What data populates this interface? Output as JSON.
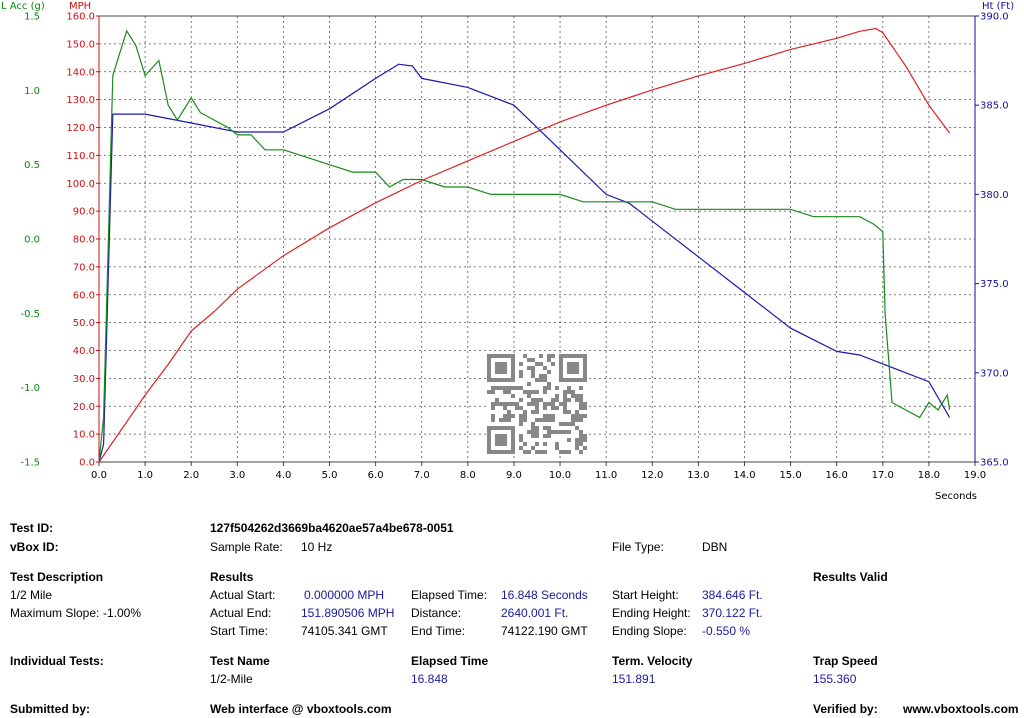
{
  "chart_data": {
    "type": "line",
    "x_axis": {
      "label": "Seconds",
      "min": 0,
      "max": 19,
      "ticks": [
        "0.0",
        "1.0",
        "2.0",
        "3.0",
        "4.0",
        "5.0",
        "6.0",
        "7.0",
        "8.0",
        "9.0",
        "10.0",
        "11.0",
        "12.0",
        "13.0",
        "14.0",
        "15.0",
        "16.0",
        "17.0",
        "18.0",
        "19.0"
      ]
    },
    "y_axes": {
      "acc": {
        "label": "L Acc (g)",
        "min": -1.5,
        "max": 1.5,
        "ticks": [
          "1.5",
          "1.0",
          "0.5",
          "0.0",
          "-0.5",
          "-1.0",
          "-1.5"
        ],
        "color": "#0a8a0a"
      },
      "mph": {
        "label": "MPH",
        "min": 0,
        "max": 160,
        "ticks": [
          "160.0",
          "150.0",
          "140.0",
          "130.0",
          "120.0",
          "110.0",
          "100.0",
          "90.0",
          "80.0",
          "70.0",
          "60.0",
          "50.0",
          "40.0",
          "30.0",
          "20.0",
          "10.0",
          "0.0"
        ],
        "color": "#cc1111"
      },
      "ht": {
        "label": "Ht (Ft)",
        "min": 365,
        "max": 390,
        "ticks": [
          "390.0",
          "385.0",
          "380.0",
          "375.0",
          "370.0",
          "365.0"
        ],
        "color": "#111199"
      }
    },
    "grid": true,
    "series": [
      {
        "axis": "mph",
        "color": "#dd2222",
        "x": [
          0,
          0.5,
          1,
          1.5,
          2,
          2.5,
          3,
          4,
          5,
          6,
          7,
          8,
          9,
          10,
          11,
          12,
          13,
          14,
          15,
          16,
          16.5,
          16.85,
          17,
          17.5,
          18,
          18.45
        ],
        "y": [
          0,
          12,
          24,
          35,
          47,
          54,
          62,
          74,
          84,
          93,
          101,
          108,
          115,
          122,
          128,
          133.5,
          138.5,
          143,
          148,
          152,
          154.5,
          155.5,
          154,
          142,
          128,
          118
        ]
      },
      {
        "axis": "ht",
        "color": "#1a1aaa",
        "x": [
          0,
          0.1,
          0.3,
          1,
          2,
          3,
          4,
          5,
          6,
          6.5,
          6.8,
          7,
          8,
          9,
          10,
          11,
          11.5,
          12,
          13,
          14,
          15,
          16,
          16.5,
          17,
          17.5,
          18,
          18.45
        ],
        "y": [
          365,
          366,
          384.5,
          384.5,
          384,
          383.5,
          383.5,
          384.8,
          386.5,
          387.3,
          387.2,
          386.5,
          386,
          385,
          382.5,
          380,
          379.5,
          378.5,
          376.5,
          374.5,
          372.5,
          371.2,
          371,
          370.5,
          370,
          369.5,
          367.5
        ]
      },
      {
        "axis": "acc",
        "color": "#1a8a1a",
        "x": [
          0,
          0.1,
          0.3,
          0.6,
          0.8,
          1,
          1.3,
          1.5,
          1.7,
          2,
          2.2,
          2.5,
          2.8,
          3,
          3.3,
          3.6,
          4,
          4.5,
          5,
          5.5,
          6,
          6.3,
          6.6,
          7,
          7.5,
          8,
          8.5,
          9,
          9.5,
          10,
          10.5,
          11,
          11.5,
          12,
          12.5,
          13,
          13.5,
          14,
          14.5,
          15,
          15.5,
          16,
          16.5,
          16.8,
          17,
          17.05,
          17.2,
          17.5,
          17.8,
          18,
          18.2,
          18.4,
          18.45
        ],
        "y": [
          -1.5,
          -1.2,
          1.1,
          1.4,
          1.3,
          1.1,
          1.2,
          0.9,
          0.8,
          0.95,
          0.85,
          0.8,
          0.75,
          0.7,
          0.7,
          0.6,
          0.6,
          0.55,
          0.5,
          0.45,
          0.45,
          0.35,
          0.4,
          0.4,
          0.35,
          0.35,
          0.3,
          0.3,
          0.3,
          0.3,
          0.25,
          0.25,
          0.25,
          0.25,
          0.2,
          0.2,
          0.2,
          0.2,
          0.2,
          0.2,
          0.15,
          0.15,
          0.15,
          0.1,
          0.05,
          -0.5,
          -1.1,
          -1.15,
          -1.2,
          -1.1,
          -1.15,
          -1.05,
          -1.15
        ]
      }
    ]
  },
  "info": {
    "test_id_label": "Test ID:",
    "test_id_value": "127f504262d3669ba4620ae57a4be678-0051",
    "vbox_id_label": "vBox ID:",
    "sample_rate_label": "Sample Rate:",
    "sample_rate_value": "10 Hz",
    "file_type_label": "File Type:",
    "file_type_value": "DBN",
    "test_description_label": "Test Description",
    "test_description_value": "1/2 Mile",
    "max_slope_label": "Maximum Slope:",
    "max_slope_value": "-1.00%",
    "results_label": "Results",
    "results_valid_label": "Results Valid",
    "actual_start_label": "Actual Start:",
    "actual_start_value": "0.000000 MPH",
    "actual_end_label": "Actual End:",
    "actual_end_value": "151.890506 MPH",
    "start_time_label": "Start Time:",
    "start_time_value": "74105.341 GMT",
    "elapsed_time_label": "Elapsed Time:",
    "elapsed_time_value": "16.848 Seconds",
    "distance_label": "Distance:",
    "distance_value": "2640.001 Ft.",
    "end_time_label": "End Time:",
    "end_time_value": "74122.190 GMT",
    "start_height_label": "Start Height:",
    "start_height_value": "384.646 Ft.",
    "ending_height_label": "Ending Height:",
    "ending_height_value": "370.122 Ft.",
    "ending_slope_label": "Ending Slope:",
    "ending_slope_value": "-0.550 %",
    "individual_tests_label": "Individual Tests:",
    "col_test_name": "Test Name",
    "col_elapsed_time": "Elapsed Time",
    "col_term_velocity": "Term. Velocity",
    "col_trap_speed": "Trap Speed",
    "row_test_name": "1/2-Mile",
    "row_elapsed_time": "16.848",
    "row_term_velocity": "151.891",
    "row_trap_speed": "155.360",
    "submitted_by_label": "Submitted by:",
    "web_interface_label": "Web interface @ vboxtools.com",
    "verified_by_label": "Verified by:",
    "verified_by_value": "www.vboxtools.com"
  }
}
